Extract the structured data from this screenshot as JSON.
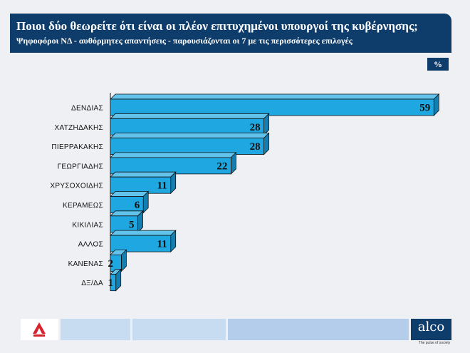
{
  "header": {
    "title": "Ποιοι δύο θεωρείτε ότι είναι οι πλέον επιτυχημένοι υπουργοί της κυβέρνησης;",
    "subtitle": "Ψηφοφόροι ΝΔ - αυθόρμητες απαντήσεις - παρουσιάζονται οι 7 με τις περισσότερες επιλογές"
  },
  "unit_label": "%",
  "chart_data": {
    "type": "bar",
    "orientation": "horizontal",
    "categories": [
      "ΔΕΝΔΙΑΣ",
      "ΧΑΤΖΗΔΑΚΗΣ",
      "ΠΙΕΡΡΑΚΑΚΗΣ",
      "ΓΕΩΡΓΙΑΔΗΣ",
      "ΧΡΥΣΟΧΟΙΔΗΣ",
      "ΚΕΡΑΜΕΩΣ",
      "ΚΙΚΙΛΙΑΣ",
      "ΑΛΛΟΣ",
      "ΚΑΝΕΝΑΣ",
      "ΔΞ/ΔΑ"
    ],
    "values": [
      59,
      28,
      28,
      22,
      11,
      6,
      5,
      11,
      2,
      1
    ],
    "unit": "%",
    "bar_color": "#1fa7e1",
    "grid": false,
    "legend": "none"
  },
  "footer": {
    "brand": "alco",
    "tagline": "The pulse of society",
    "left_logo_icon": "red-a-logo-icon",
    "colors": {
      "dark": "#0f3d6b",
      "light": "#b9d1ec"
    }
  }
}
